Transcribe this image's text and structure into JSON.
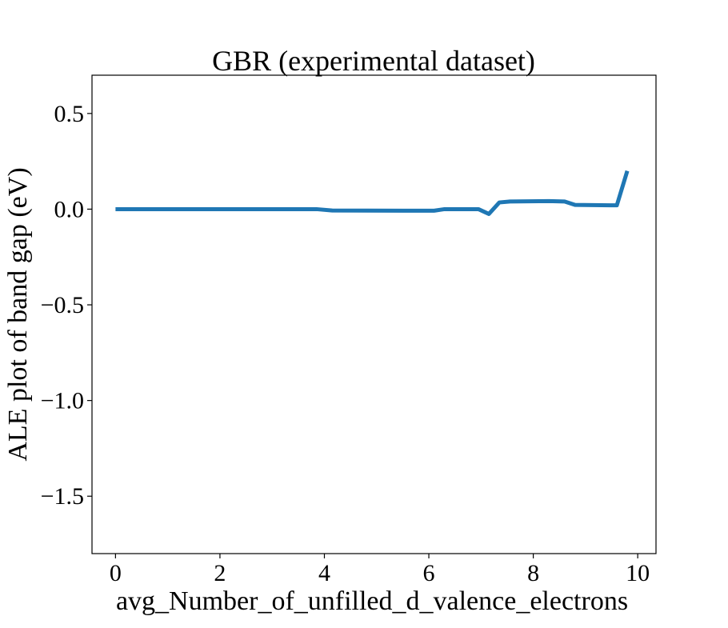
{
  "chart_data": {
    "type": "line",
    "title": "GBR (experimental dataset)",
    "xlabel": "avg_Number_of_unfilled_d_valence_electrons",
    "ylabel": "ALE plot of band gap (eV)",
    "xlim": [
      -0.45,
      10.35
    ],
    "ylim": [
      -1.8,
      0.7
    ],
    "xticks": [
      0,
      2,
      4,
      6,
      8,
      10
    ],
    "xtick_labels": [
      "0",
      "2",
      "4",
      "6",
      "8",
      "10"
    ],
    "yticks": [
      0.5,
      0.0,
      -0.5,
      -1.0,
      -1.5
    ],
    "ytick_labels": [
      "0.5",
      "0.0",
      "−0.5",
      "−1.0",
      "−1.5"
    ],
    "grid": false,
    "legend": "none",
    "series": [
      {
        "color": "#1f77b4",
        "x": [
          0.0,
          3.85,
          4.15,
          5.5,
          6.1,
          6.3,
          6.95,
          7.15,
          7.35,
          7.55,
          8.3,
          8.6,
          8.8,
          9.6,
          9.8
        ],
        "y": [
          0.0,
          0.0,
          -0.007,
          -0.008,
          -0.008,
          0.0,
          0.0,
          -0.025,
          0.035,
          0.04,
          0.042,
          0.04,
          0.022,
          0.02,
          0.2
        ]
      }
    ]
  }
}
